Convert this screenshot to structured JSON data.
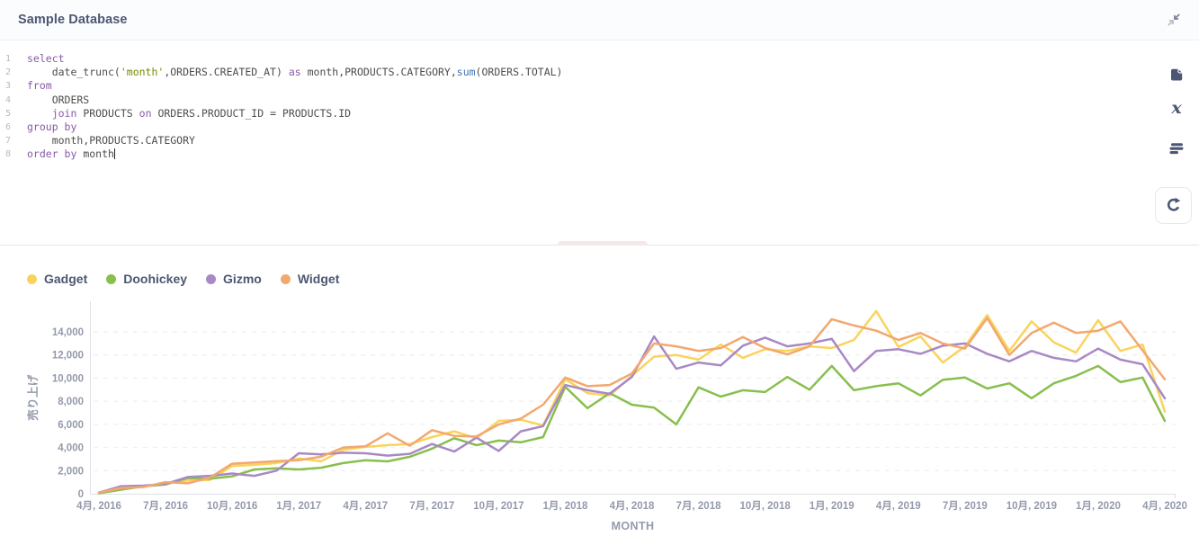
{
  "header": {
    "title": "Sample Database"
  },
  "toolbar": {
    "collapse_icon": "collapse-arrows-icon",
    "data_reference_icon": "book-icon",
    "variables_icon": "italic-x-icon",
    "snippets_icon": "snippet-lines-icon",
    "run_icon": "refresh-icon"
  },
  "editor": {
    "cursor": {
      "line": 8,
      "after_text": "month"
    },
    "lines": [
      {
        "num": "1",
        "tokens": [
          {
            "text": "select",
            "type": "keyword"
          }
        ]
      },
      {
        "num": "2",
        "tokens": [
          {
            "text": "    date_trunc(",
            "type": "plain"
          },
          {
            "text": "'month'",
            "type": "string"
          },
          {
            "text": ",ORDERS.CREATED_AT) ",
            "type": "plain"
          },
          {
            "text": "as",
            "type": "keyword"
          },
          {
            "text": " month,PRODUCTS.CATEGORY,",
            "type": "plain"
          },
          {
            "text": "sum",
            "type": "function"
          },
          {
            "text": "(ORDERS.TOTAL)",
            "type": "plain"
          }
        ]
      },
      {
        "num": "3",
        "tokens": [
          {
            "text": "from",
            "type": "keyword"
          }
        ]
      },
      {
        "num": "4",
        "tokens": [
          {
            "text": "    ORDERS",
            "type": "plain"
          }
        ]
      },
      {
        "num": "5",
        "tokens": [
          {
            "text": "    ",
            "type": "plain"
          },
          {
            "text": "join",
            "type": "keyword"
          },
          {
            "text": " PRODUCTS ",
            "type": "plain"
          },
          {
            "text": "on",
            "type": "keyword"
          },
          {
            "text": " ORDERS.PRODUCT_ID = PRODUCTS.ID",
            "type": "plain"
          }
        ]
      },
      {
        "num": "6",
        "tokens": [
          {
            "text": "group by",
            "type": "keyword"
          }
        ]
      },
      {
        "num": "7",
        "tokens": [
          {
            "text": "    month,PRODUCTS.CATEGORY",
            "type": "plain"
          }
        ]
      },
      {
        "num": "8",
        "tokens": [
          {
            "text": "order by",
            "type": "keyword"
          },
          {
            "text": " month",
            "type": "plain"
          }
        ]
      }
    ]
  },
  "chart_data": {
    "type": "line",
    "x_label": "MONTH",
    "y_label": "売り上げ",
    "grid": "dashed-horizontal",
    "legend_position": "top-left",
    "ylim": [
      0,
      16000
    ],
    "y_ticks": [
      0,
      2000,
      4000,
      6000,
      8000,
      10000,
      12000,
      14000
    ],
    "y_tick_labels": [
      "0",
      "2,000",
      "4,000",
      "6,000",
      "8,000",
      "10,000",
      "12,000",
      "14,000"
    ],
    "x_tick_every": 3,
    "x_tick_labels": [
      "4月, 2016",
      "7月, 2016",
      "10月, 2016",
      "1月, 2017",
      "4月, 2017",
      "7月, 2017",
      "10月, 2017",
      "1月, 2018",
      "4月, 2018",
      "7月, 2018",
      "10月, 2018",
      "1月, 2019",
      "4月, 2019",
      "7月, 2019",
      "10月, 2019",
      "1月, 2020",
      "4月, 2020"
    ],
    "months": [
      "2016-04",
      "2016-05",
      "2016-06",
      "2016-07",
      "2016-08",
      "2016-09",
      "2016-10",
      "2016-11",
      "2016-12",
      "2017-01",
      "2017-02",
      "2017-03",
      "2017-04",
      "2017-05",
      "2017-06",
      "2017-07",
      "2017-08",
      "2017-09",
      "2017-10",
      "2017-11",
      "2017-12",
      "2018-01",
      "2018-02",
      "2018-03",
      "2018-04",
      "2018-05",
      "2018-06",
      "2018-07",
      "2018-08",
      "2018-09",
      "2018-10",
      "2018-11",
      "2018-12",
      "2019-01",
      "2019-02",
      "2019-03",
      "2019-04",
      "2019-05",
      "2019-06",
      "2019-07",
      "2019-08",
      "2019-09",
      "2019-10",
      "2019-11",
      "2019-12",
      "2020-01",
      "2020-02",
      "2020-03",
      "2020-04"
    ],
    "series": [
      {
        "name": "Gadget",
        "color": "#F9D45C",
        "values": [
          100,
          400,
          600,
          900,
          1150,
          1200,
          2400,
          2500,
          2650,
          3050,
          2800,
          3800,
          4050,
          4200,
          4300,
          4900,
          5400,
          4800,
          6300,
          6400,
          5900,
          9900,
          8700,
          8500,
          10200,
          11850,
          12000,
          11600,
          12900,
          11750,
          12500,
          12350,
          12750,
          12600,
          13300,
          15800,
          12700,
          13600,
          11350,
          12750,
          15450,
          12350,
          14900,
          13100,
          12200,
          15000,
          12350,
          12900,
          7100
        ]
      },
      {
        "name": "Doohickey",
        "color": "#88BF4D",
        "values": [
          50,
          350,
          650,
          800,
          1350,
          1300,
          1500,
          2100,
          2200,
          2100,
          2250,
          2650,
          2900,
          2800,
          3200,
          3900,
          4800,
          4200,
          4600,
          4450,
          4900,
          9250,
          7400,
          8700,
          7700,
          7450,
          6000,
          9200,
          8400,
          8950,
          8800,
          10100,
          9000,
          11050,
          8950,
          9300,
          9550,
          8500,
          9850,
          10050,
          9100,
          9550,
          8250,
          9550,
          10200,
          11050,
          9650,
          10050,
          6300
        ]
      },
      {
        "name": "Gizmo",
        "color": "#A989C5",
        "values": [
          100,
          650,
          700,
          850,
          1450,
          1550,
          1750,
          1550,
          2000,
          3500,
          3400,
          3550,
          3500,
          3300,
          3450,
          4300,
          3650,
          4850,
          3700,
          5400,
          5850,
          9400,
          8950,
          8650,
          10100,
          13600,
          10800,
          11350,
          11100,
          12800,
          13500,
          12750,
          13000,
          13400,
          10600,
          12350,
          12500,
          12100,
          12800,
          13000,
          12100,
          11450,
          12350,
          11750,
          11450,
          12550,
          11600,
          11200,
          8250
        ]
      },
      {
        "name": "Widget",
        "color": "#F2A86F",
        "values": [
          100,
          500,
          580,
          1000,
          900,
          1400,
          2600,
          2700,
          2820,
          2900,
          3200,
          4000,
          4100,
          5230,
          4150,
          5500,
          5000,
          4950,
          6000,
          6500,
          7700,
          10050,
          9300,
          9400,
          10400,
          13000,
          12750,
          12350,
          12600,
          13550,
          12600,
          12050,
          12750,
          15100,
          14550,
          14100,
          13300,
          13900,
          13000,
          12550,
          15200,
          12000,
          13900,
          14800,
          13900,
          14100,
          14900,
          12400,
          9900
        ]
      }
    ]
  }
}
